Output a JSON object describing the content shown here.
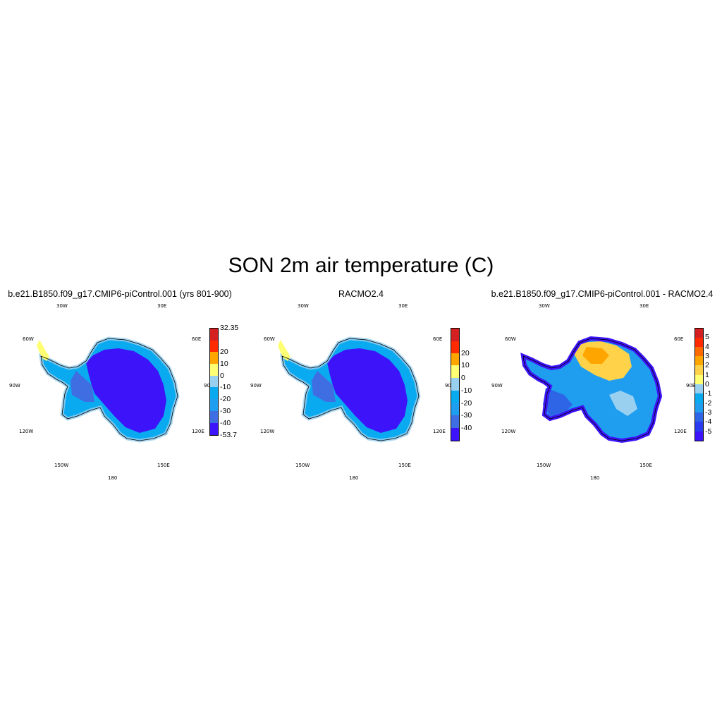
{
  "title": "SON 2m air temperature (C)",
  "coord_labels": {
    "top_left": "30W",
    "top_right": "30E",
    "mid_left_upper": "60W",
    "mid_right_upper": "60E",
    "left": "90W",
    "right": "90E",
    "mid_left_lower": "120W",
    "mid_right_lower": "120E",
    "bottom_left": "150W",
    "bottom_right": "150E",
    "bottom": "180"
  },
  "panels": [
    {
      "title": "b.e21.B1850.f09_g17.CMIP6-piControl.001 (yrs 801-900)",
      "colorbar": {
        "colors": [
          "#3d14fa",
          "#3f6ee3",
          "#1f9ef0",
          "#0aaaf0",
          "#99d0f0",
          "#ffff73",
          "#ffa500",
          "#ff2a00",
          "#d42020"
        ],
        "labels": [
          "-53.7",
          "-40",
          "-30",
          "-20",
          "-10",
          "0",
          "10",
          "20",
          "32.35"
        ]
      },
      "fill_palette": [
        "#3d14fa",
        "#3f6ee3",
        "#0aaaf0",
        "#99d0f0",
        "#ffff73"
      ]
    },
    {
      "title": "RACMO2.4",
      "colorbar": {
        "colors": [
          "#3d14fa",
          "#3f6ee3",
          "#1f9ef0",
          "#0aaaf0",
          "#99d0f0",
          "#ffff73",
          "#ffa500",
          "#ff2a00",
          "#d42020"
        ],
        "labels": [
          "-40",
          "-30",
          "-20",
          "-10",
          "0",
          "10",
          "20"
        ]
      },
      "fill_palette": [
        "#3d14fa",
        "#3f6ee3",
        "#0aaaf0",
        "#99d0f0",
        "#ffff73"
      ]
    },
    {
      "title": "b.e21.B1850.f09_g17.CMIP6-piControl.001 - RACMO2.4",
      "colorbar": {
        "colors": [
          "#3d14fa",
          "#2a3aef",
          "#2e64e6",
          "#1f9ef0",
          "#0aaaf0",
          "#99d0f0",
          "#ffff73",
          "#ffd24a",
          "#ffa500",
          "#ff6a00",
          "#ff2a00",
          "#d42020"
        ],
        "labels": [
          "-5",
          "-4",
          "-3",
          "-2",
          "-1",
          "0",
          "1",
          "2",
          "3",
          "4",
          "5"
        ]
      },
      "fill_palette": [
        "#3d14fa",
        "#2e64e6",
        "#1f9ef0",
        "#99d0f0",
        "#ffd24a",
        "#ffa500"
      ]
    }
  ]
}
